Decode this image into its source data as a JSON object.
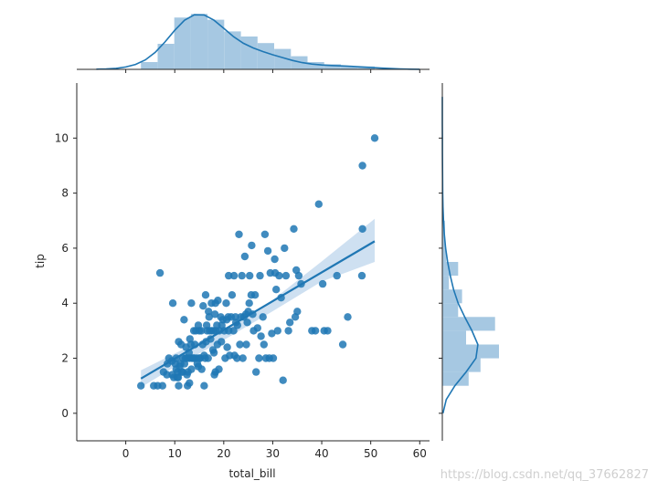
{
  "colors": {
    "main": "#1f77b4",
    "hist_fill": "#a6c8e2",
    "band_fill": "#c5daee",
    "axis": "#262626"
  },
  "chart_data": {
    "type": "scatter",
    "kind": "jointplot with regression fit and marginal histograms/kde",
    "xlabel": "total_bill",
    "ylabel": "tip",
    "xlim": [
      -10,
      62
    ],
    "ylim": [
      -1,
      12
    ],
    "xticks": [
      0,
      10,
      20,
      30,
      40,
      50,
      60
    ],
    "yticks": [
      0,
      2,
      4,
      6,
      8,
      10
    ],
    "grid": false,
    "points": [
      [
        3.1,
        1.0
      ],
      [
        5.7,
        1.0
      ],
      [
        6.5,
        1.0
      ],
      [
        7.0,
        5.1
      ],
      [
        7.5,
        1.0
      ],
      [
        7.7,
        1.5
      ],
      [
        8.4,
        1.4
      ],
      [
        8.5,
        1.8
      ],
      [
        8.8,
        2.0
      ],
      [
        9.4,
        1.9
      ],
      [
        9.5,
        1.4
      ],
      [
        9.6,
        4.0
      ],
      [
        9.8,
        1.3
      ],
      [
        10.1,
        1.8
      ],
      [
        10.3,
        2.0
      ],
      [
        10.3,
        1.6
      ],
      [
        10.5,
        1.3
      ],
      [
        10.6,
        1.5
      ],
      [
        10.7,
        1.3
      ],
      [
        10.8,
        2.6
      ],
      [
        10.8,
        1.0
      ],
      [
        11.0,
        1.7
      ],
      [
        11.2,
        1.8
      ],
      [
        11.3,
        2.5
      ],
      [
        11.4,
        1.5
      ],
      [
        11.6,
        1.5
      ],
      [
        11.7,
        2.0
      ],
      [
        11.9,
        3.4
      ],
      [
        12.0,
        1.8
      ],
      [
        12.2,
        2.0
      ],
      [
        12.3,
        2.4
      ],
      [
        12.5,
        1.4
      ],
      [
        12.5,
        2.0
      ],
      [
        12.6,
        1.0
      ],
      [
        12.7,
        1.5
      ],
      [
        12.9,
        2.2
      ],
      [
        13.0,
        2.0
      ],
      [
        13.0,
        1.1
      ],
      [
        13.1,
        2.7
      ],
      [
        13.3,
        2.5
      ],
      [
        13.4,
        1.6
      ],
      [
        13.4,
        4.0
      ],
      [
        13.5,
        2.0
      ],
      [
        13.8,
        2.0
      ],
      [
        13.9,
        3.0
      ],
      [
        14.0,
        2.0
      ],
      [
        14.1,
        2.5
      ],
      [
        14.3,
        3.0
      ],
      [
        14.5,
        2.0
      ],
      [
        14.6,
        1.8
      ],
      [
        14.8,
        3.2
      ],
      [
        14.8,
        1.7
      ],
      [
        15.0,
        2.0
      ],
      [
        15.0,
        3.0
      ],
      [
        15.2,
        2.0
      ],
      [
        15.4,
        3.0
      ],
      [
        15.5,
        1.6
      ],
      [
        15.7,
        2.5
      ],
      [
        15.8,
        3.9
      ],
      [
        16.0,
        2.1
      ],
      [
        16.0,
        1.0
      ],
      [
        16.2,
        2.0
      ],
      [
        16.3,
        4.3
      ],
      [
        16.4,
        2.6
      ],
      [
        16.5,
        3.2
      ],
      [
        16.6,
        3.0
      ],
      [
        16.8,
        2.0
      ],
      [
        16.9,
        3.7
      ],
      [
        17.0,
        3.5
      ],
      [
        17.1,
        3.0
      ],
      [
        17.3,
        2.7
      ],
      [
        17.5,
        3.0
      ],
      [
        17.5,
        4.0
      ],
      [
        17.8,
        2.3
      ],
      [
        17.9,
        3.0
      ],
      [
        18.0,
        2.2
      ],
      [
        18.1,
        1.4
      ],
      [
        18.2,
        3.6
      ],
      [
        18.3,
        4.0
      ],
      [
        18.3,
        1.5
      ],
      [
        18.4,
        3.0
      ],
      [
        18.6,
        3.2
      ],
      [
        18.7,
        2.5
      ],
      [
        18.8,
        4.1
      ],
      [
        19.0,
        1.6
      ],
      [
        19.1,
        3.0
      ],
      [
        19.4,
        3.5
      ],
      [
        19.5,
        2.6
      ],
      [
        19.6,
        3.2
      ],
      [
        19.8,
        3.4
      ],
      [
        20.1,
        3.0
      ],
      [
        20.3,
        2.0
      ],
      [
        20.5,
        4.0
      ],
      [
        20.6,
        3.4
      ],
      [
        20.7,
        2.4
      ],
      [
        20.9,
        3.5
      ],
      [
        21.0,
        3.0
      ],
      [
        21.0,
        5.0
      ],
      [
        21.2,
        2.1
      ],
      [
        21.5,
        3.5
      ],
      [
        21.7,
        4.3
      ],
      [
        22.0,
        3.0
      ],
      [
        22.1,
        5.0
      ],
      [
        22.2,
        2.1
      ],
      [
        22.4,
        3.5
      ],
      [
        22.5,
        3.3
      ],
      [
        22.7,
        2.0
      ],
      [
        22.8,
        3.2
      ],
      [
        23.1,
        6.5
      ],
      [
        23.3,
        2.5
      ],
      [
        23.5,
        3.5
      ],
      [
        23.7,
        5.0
      ],
      [
        23.9,
        2.0
      ],
      [
        24.1,
        3.5
      ],
      [
        24.3,
        5.7
      ],
      [
        24.5,
        3.6
      ],
      [
        24.6,
        2.5
      ],
      [
        24.8,
        3.3
      ],
      [
        25.0,
        3.7
      ],
      [
        25.2,
        4.0
      ],
      [
        25.3,
        5.0
      ],
      [
        25.6,
        4.3
      ],
      [
        25.7,
        6.1
      ],
      [
        25.9,
        3.6
      ],
      [
        26.1,
        3.0
      ],
      [
        26.4,
        4.3
      ],
      [
        26.6,
        1.5
      ],
      [
        26.9,
        3.1
      ],
      [
        27.2,
        2.0
      ],
      [
        27.4,
        5.0
      ],
      [
        27.6,
        2.8
      ],
      [
        28.0,
        3.5
      ],
      [
        28.2,
        2.5
      ],
      [
        28.4,
        6.5
      ],
      [
        28.6,
        2.0
      ],
      [
        29.0,
        5.9
      ],
      [
        29.3,
        2.0
      ],
      [
        29.5,
        5.1
      ],
      [
        29.8,
        2.9
      ],
      [
        30.1,
        2.0
      ],
      [
        30.4,
        5.6
      ],
      [
        30.5,
        5.1
      ],
      [
        30.7,
        4.5
      ],
      [
        31.0,
        3.0
      ],
      [
        31.3,
        5.0
      ],
      [
        31.7,
        4.2
      ],
      [
        32.1,
        1.2
      ],
      [
        32.4,
        6.0
      ],
      [
        32.7,
        5.0
      ],
      [
        33.2,
        3.0
      ],
      [
        33.5,
        3.3
      ],
      [
        34.3,
        6.7
      ],
      [
        34.6,
        3.5
      ],
      [
        34.8,
        5.2
      ],
      [
        35.0,
        3.7
      ],
      [
        35.3,
        5.0
      ],
      [
        35.8,
        4.7
      ],
      [
        38.0,
        3.0
      ],
      [
        38.7,
        3.0
      ],
      [
        39.4,
        7.6
      ],
      [
        40.2,
        4.7
      ],
      [
        40.5,
        3.0
      ],
      [
        41.2,
        3.0
      ],
      [
        43.1,
        5.0
      ],
      [
        44.3,
        2.5
      ],
      [
        45.3,
        3.5
      ],
      [
        48.2,
        5.0
      ],
      [
        48.3,
        6.7
      ],
      [
        48.3,
        9.0
      ],
      [
        50.8,
        10.0
      ]
    ],
    "regression": {
      "line": [
        [
          3.1,
          1.26
        ],
        [
          50.8,
          6.25
        ]
      ],
      "ci_upper": [
        [
          3.1,
          1.56
        ],
        [
          10,
          2.17
        ],
        [
          20,
          3.03
        ],
        [
          30,
          4.12
        ],
        [
          40,
          5.52
        ],
        [
          50.8,
          7.07
        ]
      ],
      "ci_lower": [
        [
          3.1,
          0.94
        ],
        [
          10,
          1.69
        ],
        [
          20,
          2.66
        ],
        [
          30,
          3.71
        ],
        [
          40,
          4.79
        ],
        [
          50.8,
          5.5
        ]
      ]
    },
    "x_hist": {
      "edges": [
        3.1,
        6.5,
        9.9,
        13.3,
        16.7,
        20.1,
        23.5,
        26.9,
        30.3,
        33.7,
        37.1,
        40.5,
        43.9,
        47.3,
        50.8
      ],
      "density": [
        0.01,
        0.035,
        0.071,
        0.076,
        0.068,
        0.052,
        0.045,
        0.036,
        0.028,
        0.018,
        0.01,
        0.007,
        0.004,
        0.004
      ]
    },
    "x_kde": {
      "x": [
        -6,
        -4,
        -2,
        0,
        2,
        4,
        6,
        8,
        10,
        12,
        14,
        16,
        18,
        20,
        22,
        24,
        26,
        28,
        30,
        32,
        34,
        36,
        38,
        40,
        42,
        44,
        46,
        48,
        50,
        52,
        54,
        56,
        58,
        60
      ],
      "y": [
        0.0002,
        0.0006,
        0.0014,
        0.0032,
        0.0067,
        0.013,
        0.0232,
        0.0375,
        0.0535,
        0.0672,
        0.0748,
        0.0745,
        0.0674,
        0.0563,
        0.0448,
        0.0357,
        0.0294,
        0.0244,
        0.02,
        0.0161,
        0.0123,
        0.0093,
        0.0072,
        0.006,
        0.0053,
        0.0047,
        0.0041,
        0.0034,
        0.0026,
        0.0018,
        0.0011,
        0.0006,
        0.0003,
        0.0001
      ]
    },
    "y_hist": {
      "edges": [
        1.0,
        1.5,
        2.0,
        2.5,
        3.0,
        3.5,
        4.0,
        4.5,
        5.0,
        5.5,
        6.0,
        6.5,
        7.0
      ],
      "density": [
        0.4,
        0.58,
        0.86,
        0.36,
        0.8,
        0.24,
        0.3,
        0.1,
        0.24,
        0.06,
        0.04,
        0.04
      ]
    },
    "y_kde": {
      "y": [
        0,
        0.5,
        1.0,
        1.5,
        2.0,
        2.5,
        3.0,
        3.5,
        4.0,
        4.5,
        5.0,
        5.5,
        6.0,
        6.5,
        7.0,
        7.5,
        8.0,
        8.5,
        9.0,
        9.5,
        10.0,
        10.5,
        11.0,
        11.5
      ],
      "x": [
        0.01,
        0.06,
        0.19,
        0.36,
        0.51,
        0.54,
        0.45,
        0.34,
        0.24,
        0.17,
        0.12,
        0.08,
        0.05,
        0.03,
        0.018,
        0.01,
        0.006,
        0.004,
        0.003,
        0.002,
        0.001,
        0.0005,
        0.0002,
        0.0001
      ]
    }
  },
  "watermark": "https://blog.csdn.net/qq_37662827"
}
